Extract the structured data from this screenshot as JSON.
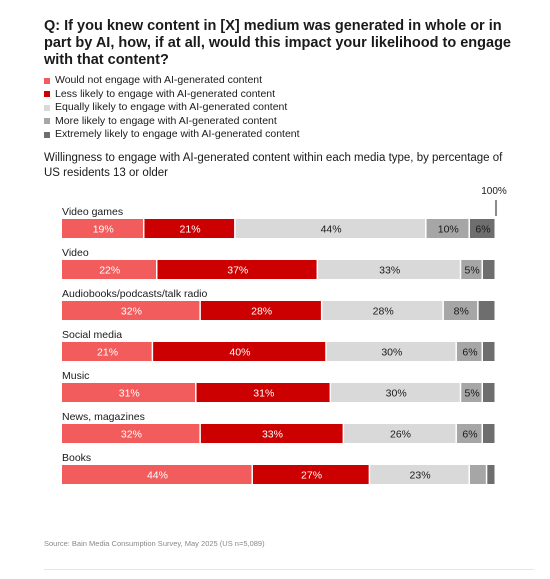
{
  "title": "Q: If you knew content in [X] medium was generated in whole or in part by AI, how, if at all, would this impact your likelihood to engage with that content?",
  "subtitle": "Willingness to engage with AI-generated content within each media type, by percentage of US residents 13 or older",
  "source": "Source: Bain Media Consumption Survey, May 2025 (US n=5,089)",
  "chart_data": {
    "type": "bar",
    "orientation": "horizontal",
    "stacked": true,
    "xlim": [
      0,
      100
    ],
    "axis_label_100": "100%",
    "categories": [
      "Video games",
      "Video",
      "Audiobooks/podcasts/talk radio",
      "Social media",
      "Music",
      "News, magazines",
      "Books"
    ],
    "series": [
      {
        "name": "Would not engage with AI-generated content",
        "color": "#f25c5c",
        "values": [
          19,
          22,
          32,
          21,
          31,
          32,
          44
        ],
        "labels": [
          "19%",
          "22%",
          "32%",
          "21%",
          "31%",
          "32%",
          "44%"
        ]
      },
      {
        "name": "Less likely to engage with AI-generated content",
        "color": "#cc0000",
        "values": [
          21,
          37,
          28,
          40,
          31,
          33,
          27
        ],
        "labels": [
          "21%",
          "37%",
          "28%",
          "40%",
          "31%",
          "33%",
          "27%"
        ]
      },
      {
        "name": "Equally likely to engage with AI-generated content",
        "color": "#d9d9d9",
        "values": [
          44,
          33,
          28,
          30,
          30,
          26,
          23
        ],
        "labels": [
          "44%",
          "33%",
          "28%",
          "30%",
          "30%",
          "26%",
          "23%"
        ]
      },
      {
        "name": "More likely to engage with AI-generated content",
        "color": "#a6a6a6",
        "values": [
          10,
          5,
          8,
          6,
          5,
          6,
          4
        ],
        "labels": [
          "10%",
          "5%",
          "8%",
          "6%",
          "5%",
          "6%",
          ""
        ]
      },
      {
        "name": "Extremely likely to engage with AI-generated content",
        "color": "#6e6e6e",
        "values": [
          6,
          3,
          4,
          3,
          3,
          3,
          2
        ],
        "labels": [
          "6%",
          "",
          "",
          "",
          "",
          "",
          ""
        ]
      }
    ]
  }
}
